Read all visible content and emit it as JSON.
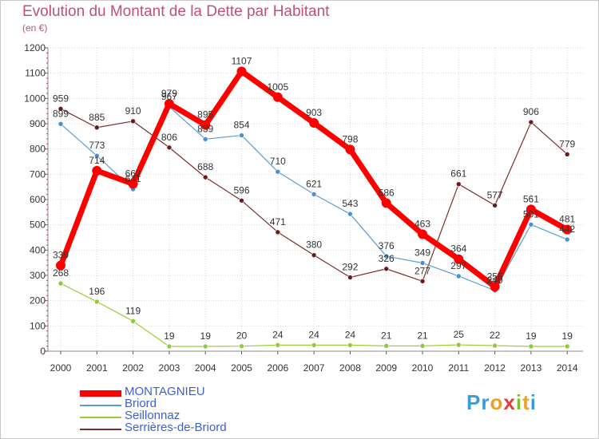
{
  "title": "Evolution du Montant de la Dette par Habitant",
  "subtitle": "(en €)",
  "logo": {
    "text": "Proxiti",
    "letters": [
      "P",
      "r",
      "o",
      "x",
      "i",
      "t",
      "i"
    ],
    "colors": [
      "#3b9ad9",
      "#3b9ad9",
      "#f0a020",
      "#e23c3c",
      "#7bbf2a",
      "#f0a020",
      "#3b9ad9"
    ]
  },
  "chart_data": {
    "type": "line",
    "title": "Evolution du Montant de la Dette par Habitant",
    "ylabel": "(en €)",
    "categories": [
      "2000",
      "2001",
      "2002",
      "2003",
      "2004",
      "2005",
      "2006",
      "2007",
      "2008",
      "2009",
      "2010",
      "2011",
      "2012",
      "2013",
      "2014"
    ],
    "ylim": [
      0,
      1200
    ],
    "yticks": [
      "0",
      "100",
      "200",
      "300",
      "400",
      "500",
      "600",
      "700",
      "800",
      "900",
      "1000",
      "1100",
      "1200"
    ],
    "legend_position": "bottom-left",
    "series": [
      {
        "name": "MONTAGNIEU",
        "color": "#ff0000",
        "values": [
          339,
          714,
          662,
          979,
          895,
          1107,
          1005,
          903,
          798,
          586,
          463,
          364,
          255,
          561,
          481
        ],
        "labels": [
          "339",
          "714",
          "662",
          "979",
          "895",
          "1107",
          "1005",
          "903",
          "798",
          "586",
          "463",
          "364",
          "255",
          "561",
          "481"
        ]
      },
      {
        "name": "Briord",
        "color": "#5b9bd5",
        "values": [
          899,
          773,
          641,
          967,
          839,
          854,
          710,
          621,
          543,
          376,
          349,
          297,
          240,
          501,
          442
        ],
        "labels": [
          "899",
          "773",
          "641",
          "967",
          "839",
          "854",
          "710",
          "621",
          "543",
          "376",
          "349",
          "297",
          "240",
          "501",
          "442"
        ]
      },
      {
        "name": "Seillonnaz",
        "color": "#9acd32",
        "values": [
          268,
          196,
          119,
          19,
          19,
          20,
          24,
          24,
          24,
          21,
          21,
          25,
          22,
          19,
          19
        ],
        "labels": [
          "268",
          "196",
          "119",
          "19",
          "19",
          "20",
          "24",
          "24",
          "24",
          "21",
          "21",
          "25",
          "22",
          "19",
          "19"
        ]
      },
      {
        "name": "Serrières-de-Briord",
        "color": "#7b2e2e",
        "values": [
          959,
          885,
          910,
          806,
          688,
          596,
          471,
          380,
          292,
          326,
          277,
          661,
          577,
          906,
          779
        ],
        "labels": [
          "959",
          "885",
          "910",
          "806",
          "688",
          "596",
          "471",
          "380",
          "292",
          "326",
          "277",
          "661",
          "577",
          "906",
          "779"
        ]
      }
    ]
  }
}
